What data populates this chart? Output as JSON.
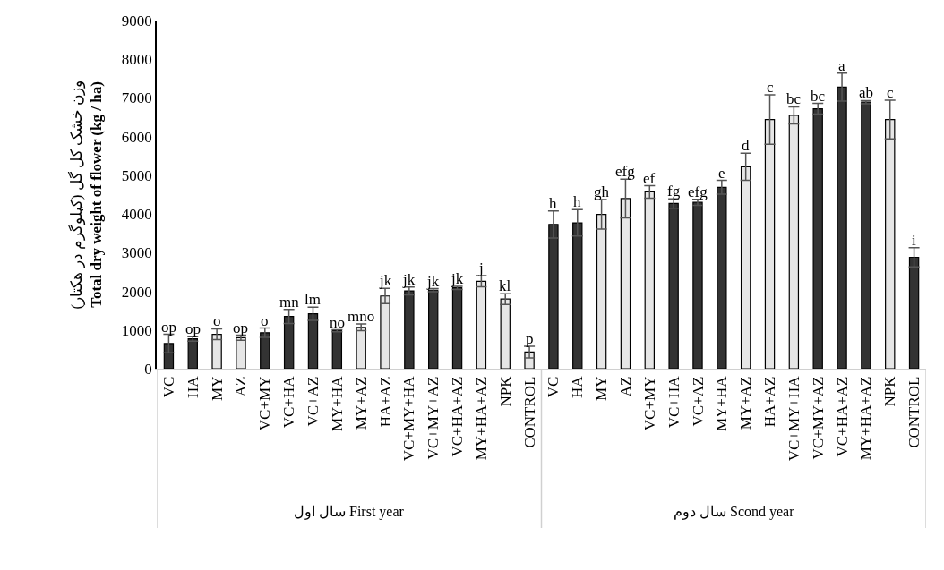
{
  "chart_data": {
    "type": "bar",
    "ylabel": "وزن خشک کل گل (کیلوگرم در هکتار)\nTotal dry weight of flower (kg / ha)",
    "categories": [
      "VC",
      "HA",
      "MY",
      "AZ",
      "VC+MY",
      "VC+HA",
      "VC+AZ",
      "MY+HA",
      "MY+AZ",
      "HA+AZ",
      "VC+MY+HA",
      "VC+MY+AZ",
      "VC+HA+AZ",
      "MY+HA+AZ",
      "NPK",
      "CONTROL",
      "VC",
      "HA",
      "MY",
      "AZ",
      "VC+MY",
      "VC+HA",
      "VC+AZ",
      "MY+HA",
      "MY+AZ",
      "HA+AZ",
      "VC+MY+HA",
      "VC+MY+AZ",
      "VC+HA+AZ",
      "MY+HA+AZ",
      "NPK",
      "CONTROL"
    ],
    "values": [
      650,
      770,
      890,
      800,
      930,
      1350,
      1420,
      980,
      1070,
      1880,
      2010,
      2030,
      2090,
      2260,
      1800,
      430,
      3730,
      3770,
      3990,
      4400,
      4570,
      4270,
      4300,
      4690,
      5220,
      6440,
      6550,
      6720,
      7280,
      6890,
      6440,
      2880
    ],
    "errors": [
      240,
      60,
      140,
      65,
      120,
      180,
      170,
      25,
      85,
      195,
      100,
      40,
      40,
      145,
      140,
      150,
      350,
      340,
      380,
      500,
      160,
      120,
      80,
      180,
      350,
      640,
      220,
      140,
      360,
      40,
      500,
      250
    ],
    "colors": [
      "#333333",
      "#333333",
      "#e6e6e6",
      "#e6e6e6",
      "#333333",
      "#333333",
      "#333333",
      "#333333",
      "#e6e6e6",
      "#e6e6e6",
      "#333333",
      "#333333",
      "#333333",
      "#e6e6e6",
      "#e6e6e6",
      "#e6e6e6",
      "#333333",
      "#333333",
      "#e6e6e6",
      "#e6e6e6",
      "#e6e6e6",
      "#333333",
      "#333333",
      "#333333",
      "#e6e6e6",
      "#e6e6e6",
      "#e6e6e6",
      "#333333",
      "#333333",
      "#333333",
      "#e6e6e6",
      "#333333"
    ],
    "value_labels": [
      "op",
      "op",
      "o",
      "op",
      "o",
      "mn",
      "lm",
      "no",
      "mno",
      "jk",
      "jk",
      "jk",
      "jk",
      "j",
      "kl",
      "p",
      "h",
      "h",
      "gh",
      "efg",
      "ef",
      "fg",
      "efg",
      "e",
      "d",
      "c",
      "bc",
      "bc",
      "a",
      "ab",
      "c",
      "i"
    ],
    "ylim": [
      0,
      9000
    ],
    "yticks": [
      0,
      1000,
      2000,
      3000,
      4000,
      5000,
      6000,
      7000,
      8000,
      9000
    ],
    "annotations": [
      "سال اول First year",
      "سال دوم Scond year"
    ],
    "grid": false,
    "legend": false
  }
}
